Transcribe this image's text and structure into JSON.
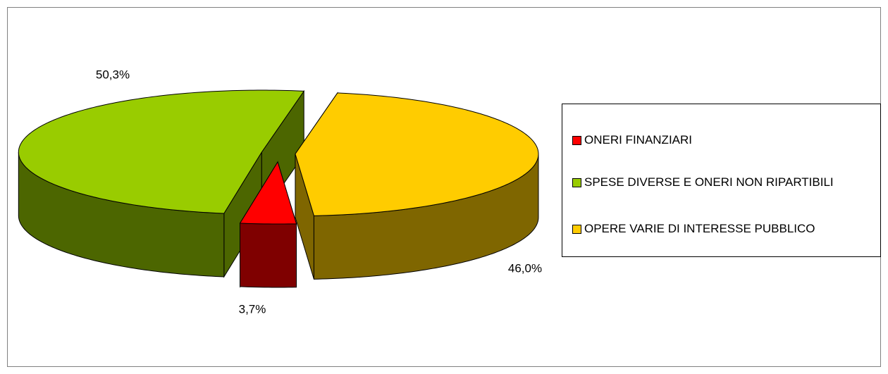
{
  "chart_data": {
    "type": "pie3d",
    "categories": [
      "ONERI FINANZIARI",
      "SPESE DIVERSE E ONERI NON RIPARTIBILI",
      "OPERE VARIE DI INTERESSE PUBBLICO"
    ],
    "values": [
      3.7,
      50.3,
      46.0
    ],
    "value_labels": [
      "3,7%",
      "50,3%",
      "46,0%"
    ],
    "colors": [
      "#ff0000",
      "#99cc00",
      "#ffcc00"
    ],
    "legend": "right"
  }
}
